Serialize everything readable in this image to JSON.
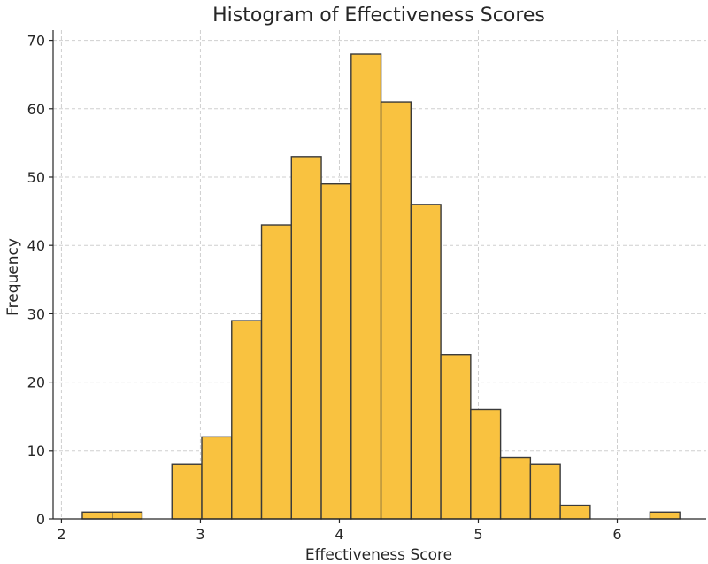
{
  "chart_data": {
    "type": "bar",
    "subtype": "histogram",
    "title": "Histogram of Effectiveness Scores",
    "xlabel": "Effectiveness Score",
    "ylabel": "Frequency",
    "xlim": [
      1.94,
      6.64
    ],
    "ylim": [
      0,
      71.5
    ],
    "xticks": [
      2,
      3,
      4,
      5,
      6
    ],
    "yticks": [
      0,
      10,
      20,
      30,
      40,
      50,
      60,
      70
    ],
    "grid": true,
    "bar_color": "#F9C240",
    "edge_color": "#3a3a3a",
    "bins": [
      {
        "x0": 2.15,
        "x1": 2.365,
        "count": 1
      },
      {
        "x0": 2.365,
        "x1": 2.58,
        "count": 1
      },
      {
        "x0": 2.58,
        "x1": 2.795,
        "count": 0
      },
      {
        "x0": 2.795,
        "x1": 3.01,
        "count": 8
      },
      {
        "x0": 3.01,
        "x1": 3.225,
        "count": 12
      },
      {
        "x0": 3.225,
        "x1": 3.44,
        "count": 29
      },
      {
        "x0": 3.44,
        "x1": 3.655,
        "count": 43
      },
      {
        "x0": 3.655,
        "x1": 3.87,
        "count": 53
      },
      {
        "x0": 3.87,
        "x1": 4.085,
        "count": 49
      },
      {
        "x0": 4.085,
        "x1": 4.3,
        "count": 68
      },
      {
        "x0": 4.3,
        "x1": 4.515,
        "count": 61
      },
      {
        "x0": 4.515,
        "x1": 4.73,
        "count": 46
      },
      {
        "x0": 4.73,
        "x1": 4.945,
        "count": 24
      },
      {
        "x0": 4.945,
        "x1": 5.16,
        "count": 16
      },
      {
        "x0": 5.16,
        "x1": 5.375,
        "count": 9
      },
      {
        "x0": 5.375,
        "x1": 5.59,
        "count": 8
      },
      {
        "x0": 5.59,
        "x1": 5.805,
        "count": 2
      },
      {
        "x0": 5.805,
        "x1": 6.02,
        "count": 0
      },
      {
        "x0": 6.02,
        "x1": 6.235,
        "count": 0
      },
      {
        "x0": 6.235,
        "x1": 6.45,
        "count": 1
      }
    ]
  }
}
